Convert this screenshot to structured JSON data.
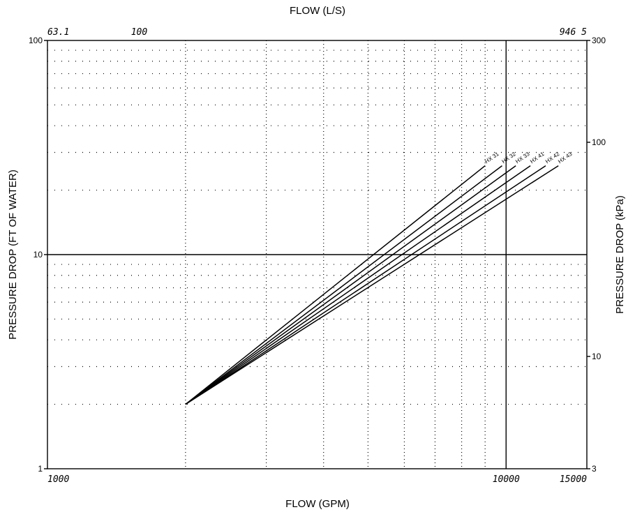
{
  "chart_data": {
    "type": "line",
    "title": "",
    "xlabel": "FLOW (GPM)",
    "ylabel": "PRESSURE DROP (FT OF WATER)",
    "x2label": "FLOW (L/S)",
    "y2label": "PRESSURE DROP (kPa)",
    "x_scale": "log",
    "y_scale": "log",
    "xlim": [
      1000,
      15000
    ],
    "ylim": [
      1,
      100
    ],
    "x_ticks": [
      {
        "value": 1000,
        "label": "1000"
      },
      {
        "value": 10000,
        "label": "10000"
      },
      {
        "value": 15000,
        "label": "15000"
      }
    ],
    "y_ticks": [
      {
        "value": 1,
        "label": "1"
      },
      {
        "value": 10,
        "label": "10"
      },
      {
        "value": 100,
        "label": "100"
      }
    ],
    "x2_ticks": [
      {
        "value": 1000,
        "label": "63.1"
      },
      {
        "value": 1585,
        "label": "100"
      },
      {
        "value": 15000,
        "label": "946 5"
      }
    ],
    "y2_ticks": [
      {
        "value": 1,
        "label": "3"
      },
      {
        "value": 3.346,
        "label": "10"
      },
      {
        "value": 33.46,
        "label": "100"
      },
      {
        "value": 100,
        "label": "300"
      }
    ],
    "grid": true,
    "series": [
      {
        "name": "HX 31",
        "x": [
          2000,
          9000
        ],
        "y": [
          2.0,
          26.0
        ]
      },
      {
        "name": "HX 32",
        "x": [
          2000,
          9800
        ],
        "y": [
          2.0,
          26.0
        ]
      },
      {
        "name": "HX 33",
        "x": [
          2000,
          10500
        ],
        "y": [
          2.0,
          26.0
        ]
      },
      {
        "name": "HX 41",
        "x": [
          2000,
          11300
        ],
        "y": [
          2.0,
          26.0
        ]
      },
      {
        "name": "HX 42",
        "x": [
          2000,
          12200
        ],
        "y": [
          2.0,
          26.0
        ]
      },
      {
        "name": "HX 43",
        "x": [
          2000,
          13000
        ],
        "y": [
          2.0,
          26.0
        ]
      }
    ]
  }
}
